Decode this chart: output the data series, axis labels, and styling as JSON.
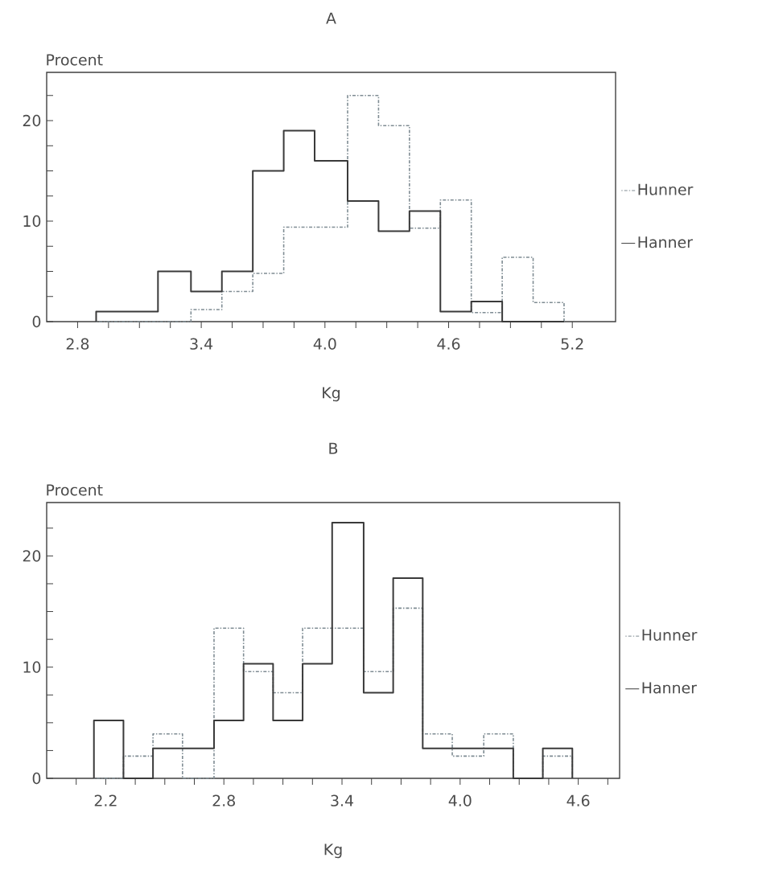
{
  "chart_data": [
    {
      "type": "histogram",
      "title": "A",
      "ylabel": "Procent",
      "xlabel": "Kg",
      "bins": [
        2.89,
        3.04,
        3.19,
        3.35,
        3.5,
        3.65,
        3.8,
        3.95,
        4.11,
        4.26,
        4.41,
        4.56,
        4.71,
        4.86,
        5.01,
        5.16
      ],
      "series": [
        {
          "name": "Hunner",
          "color": "#7f8c93",
          "line_style": "dotted",
          "values": [
            0,
            0,
            0,
            1.2,
            3,
            4.8,
            9.4,
            9.4,
            22.5,
            19.5,
            9.3,
            12.1,
            0.9,
            6.4,
            1.9
          ]
        },
        {
          "name": "Hanner",
          "color": "#3a3a3a",
          "line_style": "solid",
          "values": [
            1,
            1,
            5,
            3,
            5,
            15,
            19,
            16,
            12,
            9,
            11,
            1,
            2,
            0,
            0
          ]
        }
      ],
      "xlim": [
        2.65,
        5.41
      ],
      "ylim": [
        0,
        24.8
      ],
      "xticks": [
        2.8,
        {
          "value": 2.95,
          "label": null
        },
        {
          "value": 3.1,
          "label": null
        },
        {
          "value": 3.25,
          "label": null
        },
        3.4,
        {
          "value": 3.55,
          "label": null
        },
        {
          "value": 3.7,
          "label": null
        },
        {
          "value": 3.85,
          "label": null
        },
        {
          "value": 4.0,
          "label": "4.0"
        },
        {
          "value": 4.15,
          "label": null
        },
        {
          "value": 4.3,
          "label": null
        },
        {
          "value": 4.45,
          "label": null
        },
        4.6,
        {
          "value": 4.75,
          "label": null
        },
        {
          "value": 4.9,
          "label": null
        },
        {
          "value": 5.05,
          "label": null
        },
        5.2
      ],
      "yticks": [
        0,
        {
          "value": 2.5,
          "label": null
        },
        {
          "value": 5,
          "label": null
        },
        {
          "value": 7.5,
          "label": null
        },
        10,
        {
          "value": 12.5,
          "label": null
        },
        {
          "value": 15,
          "label": null
        },
        {
          "value": 17.5,
          "label": null
        },
        20,
        {
          "value": 22.5,
          "label": null
        }
      ],
      "legend": "right"
    },
    {
      "type": "histogram",
      "title": "B",
      "ylabel": "Procent",
      "xlabel": "Kg",
      "bins": [
        2.14,
        2.29,
        2.44,
        2.59,
        2.75,
        2.9,
        3.05,
        3.2,
        3.35,
        3.51,
        3.66,
        3.81,
        3.96,
        4.12,
        4.27,
        4.42,
        4.57
      ],
      "series": [
        {
          "name": "Hunner",
          "color": "#7f8c93",
          "line_style": "dotted",
          "values": [
            0,
            2.0,
            4.0,
            0,
            13.5,
            9.6,
            7.7,
            13.5,
            13.5,
            9.6,
            15.3,
            4.0,
            2.0,
            4.0,
            0,
            2.0
          ]
        },
        {
          "name": "Hanner",
          "color": "#3a3a3a",
          "line_style": "solid",
          "values": [
            5.2,
            0,
            2.7,
            2.7,
            5.2,
            10.3,
            5.2,
            10.3,
            23.0,
            7.7,
            18.0,
            2.7,
            2.7,
            2.7,
            0,
            2.7
          ]
        }
      ],
      "xlim": [
        1.9,
        4.81
      ],
      "ylim": [
        0,
        24.8
      ],
      "xticks": [
        {
          "value": 2.05,
          "label": null
        },
        2.2,
        {
          "value": 2.35,
          "label": null
        },
        {
          "value": 2.5,
          "label": null
        },
        {
          "value": 2.65,
          "label": null
        },
        2.8,
        {
          "value": 2.95,
          "label": null
        },
        {
          "value": 3.1,
          "label": null
        },
        {
          "value": 3.25,
          "label": null
        },
        3.4,
        {
          "value": 3.55,
          "label": null
        },
        {
          "value": 3.7,
          "label": null
        },
        {
          "value": 3.85,
          "label": null
        },
        {
          "value": 4.0,
          "label": "4.0"
        },
        {
          "value": 4.15,
          "label": null
        },
        {
          "value": 4.3,
          "label": null
        },
        {
          "value": 4.45,
          "label": null
        },
        4.6,
        {
          "value": 4.75,
          "label": null
        }
      ],
      "yticks": [
        0,
        {
          "value": 2.5,
          "label": null
        },
        {
          "value": 5,
          "label": null
        },
        {
          "value": 7.5,
          "label": null
        },
        10,
        {
          "value": 12.5,
          "label": null
        },
        {
          "value": 15,
          "label": null
        },
        {
          "value": 17.5,
          "label": null
        },
        20,
        {
          "value": 22.5,
          "label": null
        }
      ],
      "legend": "right"
    }
  ]
}
